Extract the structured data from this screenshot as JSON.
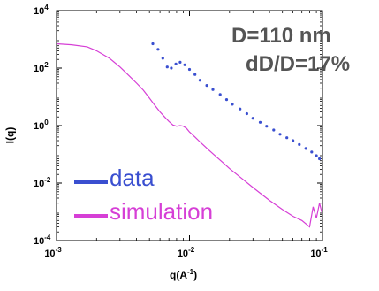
{
  "chart_data": {
    "type": "scatter",
    "title": "",
    "xlabel": "q(A",
    "xlabel_sup": "-1",
    "xlabel_close": ")",
    "ylabel": "I(q)",
    "xscale": "log",
    "yscale": "log",
    "xlim": [
      0.001,
      0.1
    ],
    "ylim": [
      0.0001,
      10000
    ],
    "x_ticks": [
      {
        "base": "10",
        "exp": "-3"
      },
      {
        "base": "10",
        "exp": "-2"
      },
      {
        "base": "10",
        "exp": "-1"
      }
    ],
    "y_ticks": [
      {
        "base": "10",
        "exp": "-4"
      },
      {
        "base": "10",
        "exp": "-2"
      },
      {
        "base": "10",
        "exp": "0"
      },
      {
        "base": "10",
        "exp": "2"
      },
      {
        "base": "10",
        "exp": "4"
      }
    ],
    "grid": false,
    "legend_position": "bottom-left",
    "annotations": [
      "D=110 nm",
      "dD/D=17%"
    ],
    "series": [
      {
        "name": "data",
        "kind": "points",
        "color": "#3a4fd0",
        "x": [
          0.0053,
          0.0058,
          0.0063,
          0.0068,
          0.0073,
          0.0079,
          0.0085,
          0.0092,
          0.01,
          0.011,
          0.012,
          0.0135,
          0.015,
          0.017,
          0.019,
          0.021,
          0.024,
          0.027,
          0.03,
          0.034,
          0.038,
          0.043,
          0.048,
          0.054,
          0.06,
          0.067,
          0.075,
          0.083,
          0.09,
          0.095
        ],
        "y": [
          700,
          450,
          220,
          110,
          100,
          140,
          160,
          130,
          90,
          60,
          38,
          25,
          18,
          12,
          8,
          5.5,
          3.8,
          2.6,
          1.8,
          1.3,
          0.95,
          0.7,
          0.5,
          0.38,
          0.3,
          0.22,
          0.16,
          0.12,
          0.09,
          0.07
        ]
      },
      {
        "name": "simulation",
        "kind": "line",
        "color": "#d63fd6",
        "x": [
          0.001,
          0.0013,
          0.0017,
          0.002,
          0.0025,
          0.003,
          0.0035,
          0.004,
          0.0045,
          0.005,
          0.0055,
          0.006,
          0.0065,
          0.007,
          0.0075,
          0.008,
          0.0085,
          0.009,
          0.0095,
          0.01,
          0.011,
          0.012,
          0.014,
          0.016,
          0.018,
          0.02,
          0.025,
          0.03,
          0.035,
          0.04,
          0.05,
          0.06,
          0.07,
          0.08,
          0.085,
          0.09,
          0.095,
          0.1
        ],
        "y": [
          700,
          650,
          550,
          400,
          220,
          110,
          55,
          30,
          17,
          9,
          5,
          3,
          2.0,
          1.4,
          1.05,
          0.95,
          1.0,
          0.95,
          0.8,
          0.6,
          0.4,
          0.27,
          0.14,
          0.08,
          0.05,
          0.032,
          0.014,
          0.007,
          0.004,
          0.0025,
          0.0012,
          0.0007,
          0.0005,
          0.0003,
          0.0015,
          0.0006,
          0.002,
          0.0008
        ]
      }
    ]
  }
}
